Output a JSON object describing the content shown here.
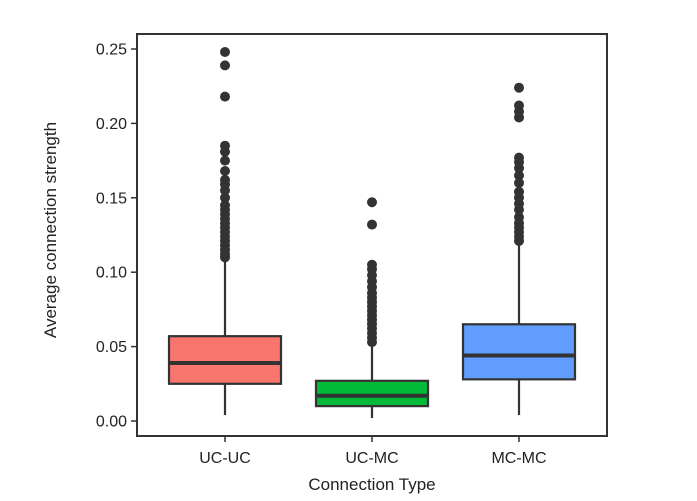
{
  "chart_data": {
    "type": "box",
    "xlabel": "Connection Type",
    "ylabel": "Average connection strength",
    "ylim": [
      -0.01,
      0.26
    ],
    "yticks": [
      0.0,
      0.05,
      0.1,
      0.15,
      0.2,
      0.25
    ],
    "ytick_labels": [
      "0.00",
      "0.05",
      "0.10",
      "0.15",
      "0.20",
      "0.25"
    ],
    "grid": false,
    "categories": [
      "UC-UC",
      "UC-MC",
      "MC-MC"
    ],
    "boxes": [
      {
        "category": "UC-UC",
        "color": "#F8766D",
        "q1": 0.025,
        "median": 0.039,
        "q3": 0.057,
        "whisker_low": 0.004,
        "whisker_high": 0.108,
        "outliers": [
          0.11,
          0.112,
          0.115,
          0.118,
          0.121,
          0.124,
          0.127,
          0.13,
          0.133,
          0.136,
          0.139,
          0.142,
          0.145,
          0.15,
          0.155,
          0.159,
          0.162,
          0.168,
          0.175,
          0.181,
          0.185,
          0.218,
          0.239,
          0.248
        ]
      },
      {
        "category": "UC-MC",
        "color": "#00BA38",
        "q1": 0.01,
        "median": 0.017,
        "q3": 0.027,
        "whisker_low": 0.002,
        "whisker_high": 0.051,
        "outliers": [
          0.053,
          0.056,
          0.059,
          0.062,
          0.065,
          0.068,
          0.071,
          0.074,
          0.077,
          0.08,
          0.083,
          0.086,
          0.09,
          0.094,
          0.098,
          0.102,
          0.105,
          0.132,
          0.147
        ]
      },
      {
        "category": "MC-MC",
        "color": "#619CFF",
        "q1": 0.028,
        "median": 0.044,
        "q3": 0.065,
        "whisker_low": 0.004,
        "whisker_high": 0.12,
        "outliers": [
          0.121,
          0.124,
          0.127,
          0.13,
          0.133,
          0.137,
          0.142,
          0.146,
          0.15,
          0.154,
          0.16,
          0.165,
          0.17,
          0.174,
          0.177,
          0.204,
          0.208,
          0.212,
          0.224
        ]
      }
    ]
  }
}
